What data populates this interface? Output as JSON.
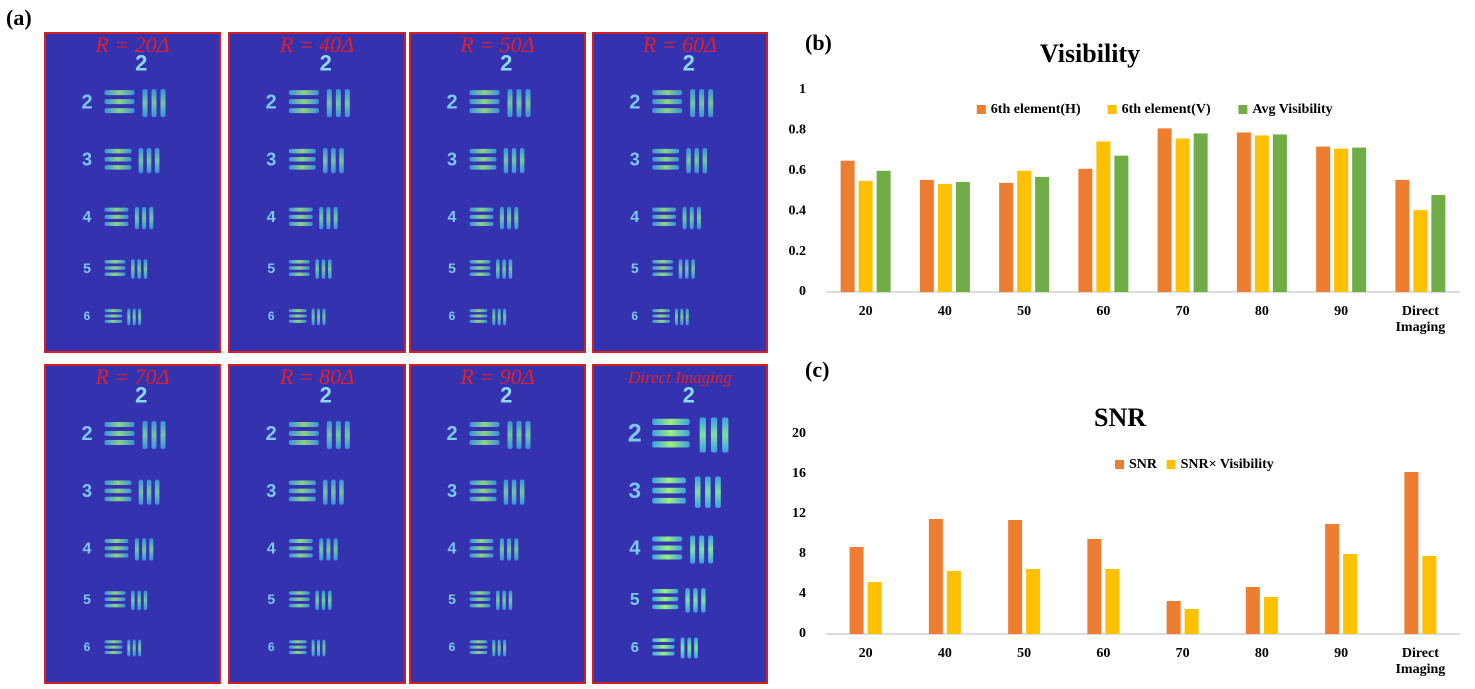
{
  "figure": {
    "panel_labels": [
      "(a)",
      "(b)",
      "(c)"
    ],
    "images": [
      {
        "label": "R = 20Δ"
      },
      {
        "label": "R = 40Δ"
      },
      {
        "label": "R = 50Δ"
      },
      {
        "label": "R = 60Δ"
      },
      {
        "label": "R = 70Δ"
      },
      {
        "label": "R = 80Δ"
      },
      {
        "label": "R = 90Δ"
      },
      {
        "label": "Direct Imaging"
      }
    ],
    "target_labels": [
      "2",
      "2",
      "3",
      "4",
      "5",
      "6"
    ]
  },
  "chart_data": [
    {
      "type": "bar",
      "title": "Visibility",
      "categories": [
        "20",
        "40",
        "50",
        "60",
        "70",
        "80",
        "90",
        "Direct Imaging"
      ],
      "series": [
        {
          "name": "6th element(H)",
          "color": "#ed7d31",
          "values": [
            0.65,
            0.555,
            0.54,
            0.61,
            0.81,
            0.79,
            0.72,
            0.555
          ]
        },
        {
          "name": "6th element(V)",
          "color": "#ffc000",
          "values": [
            0.55,
            0.535,
            0.6,
            0.745,
            0.76,
            0.775,
            0.71,
            0.405
          ]
        },
        {
          "name": "Avg Visibility",
          "color": "#70ad47",
          "values": [
            0.6,
            0.545,
            0.57,
            0.675,
            0.785,
            0.78,
            0.715,
            0.48
          ]
        }
      ],
      "ylim": [
        0,
        1
      ],
      "yticks": [
        0,
        0.2,
        0.4,
        0.6,
        0.8,
        1
      ],
      "grid": false,
      "legend": "top"
    },
    {
      "type": "bar",
      "title": "SNR",
      "categories": [
        "20",
        "40",
        "50",
        "60",
        "70",
        "80",
        "90",
        "Direct Imaging"
      ],
      "series": [
        {
          "name": "SNR",
          "color": "#ed7d31",
          "values": [
            8.7,
            11.5,
            11.4,
            9.5,
            3.3,
            4.7,
            11.0,
            16.2
          ]
        },
        {
          "name": "SNR× Visibility",
          "color": "#ffc000",
          "values": [
            5.2,
            6.3,
            6.5,
            6.5,
            2.5,
            3.7,
            8.0,
            7.8
          ]
        }
      ],
      "ylim": [
        0,
        20
      ],
      "yticks": [
        0,
        4,
        8,
        12,
        16,
        20
      ],
      "grid": false,
      "legend": "top"
    }
  ]
}
